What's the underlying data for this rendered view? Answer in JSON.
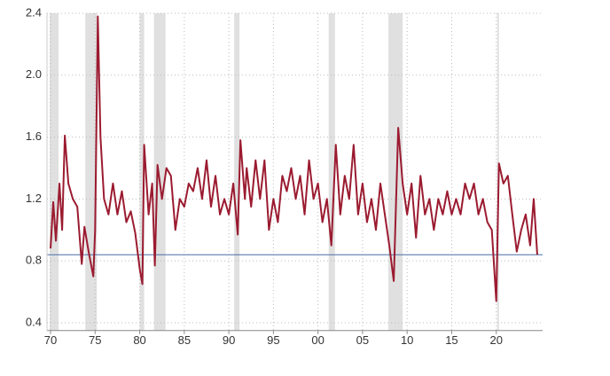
{
  "chart_data": {
    "type": "line",
    "x": [
      1970.0,
      1970.3,
      1970.6,
      1971.0,
      1971.3,
      1971.6,
      1972.0,
      1972.5,
      1973.0,
      1973.5,
      1973.8,
      1974.3,
      1974.8,
      1975.0,
      1975.3,
      1975.6,
      1976.0,
      1976.5,
      1977.0,
      1977.5,
      1978.0,
      1978.5,
      1979.0,
      1979.5,
      1980.0,
      1980.3,
      1980.5,
      1981.0,
      1981.4,
      1981.7,
      1982.0,
      1982.5,
      1983.0,
      1983.5,
      1984.0,
      1984.5,
      1985.0,
      1985.5,
      1986.0,
      1986.5,
      1987.0,
      1987.5,
      1988.0,
      1988.5,
      1989.0,
      1989.5,
      1990.0,
      1990.5,
      1991.0,
      1991.3,
      1991.8,
      1992.0,
      1992.5,
      1993.0,
      1993.5,
      1994.0,
      1994.5,
      1995.0,
      1995.5,
      1996.0,
      1996.5,
      1997.0,
      1997.5,
      1998.0,
      1998.5,
      1999.0,
      1999.5,
      2000.0,
      2000.5,
      2001.0,
      2001.5,
      2002.0,
      2002.5,
      2003.0,
      2003.5,
      2004.0,
      2004.5,
      2005.0,
      2005.5,
      2006.0,
      2006.5,
      2007.0,
      2007.5,
      2008.0,
      2008.5,
      2009.0,
      2009.5,
      2010.0,
      2010.5,
      2011.0,
      2011.5,
      2012.0,
      2012.5,
      2013.0,
      2013.5,
      2014.0,
      2014.5,
      2015.0,
      2015.5,
      2016.0,
      2016.5,
      2017.0,
      2017.5,
      2018.0,
      2018.5,
      2019.0,
      2019.5,
      2020.0,
      2020.3,
      2020.8,
      2021.3,
      2021.8,
      2022.3,
      2022.8,
      2023.3,
      2023.8,
      2024.2,
      2024.6
    ],
    "series": [
      {
        "color": "#9b1b30",
        "values": [
          0.88,
          1.18,
          0.93,
          1.3,
          1.0,
          1.61,
          1.3,
          1.2,
          1.15,
          0.78,
          1.02,
          0.85,
          0.7,
          1.0,
          2.38,
          1.6,
          1.2,
          1.1,
          1.3,
          1.1,
          1.25,
          1.05,
          1.12,
          0.98,
          0.75,
          0.65,
          1.55,
          1.1,
          1.3,
          0.77,
          1.42,
          1.2,
          1.4,
          1.35,
          1.0,
          1.2,
          1.15,
          1.3,
          1.25,
          1.4,
          1.2,
          1.45,
          1.15,
          1.35,
          1.1,
          1.2,
          1.1,
          1.3,
          0.97,
          1.58,
          1.2,
          1.4,
          1.15,
          1.45,
          1.2,
          1.45,
          1.0,
          1.2,
          1.05,
          1.35,
          1.25,
          1.4,
          1.2,
          1.35,
          1.1,
          1.45,
          1.2,
          1.3,
          1.05,
          1.2,
          0.9,
          1.55,
          1.1,
          1.35,
          1.2,
          1.55,
          1.1,
          1.3,
          1.05,
          1.2,
          1.0,
          1.3,
          1.1,
          0.9,
          0.67,
          1.66,
          1.3,
          1.1,
          1.3,
          0.95,
          1.35,
          1.1,
          1.2,
          1.0,
          1.2,
          1.1,
          1.25,
          1.1,
          1.2,
          1.1,
          1.3,
          1.2,
          1.3,
          1.1,
          1.2,
          1.05,
          1.0,
          0.54,
          1.43,
          1.3,
          1.35,
          1.1,
          0.86,
          1.0,
          1.1,
          0.9,
          1.2,
          0.84
        ]
      }
    ],
    "recessions": [
      [
        1969.9,
        1970.9
      ],
      [
        1973.9,
        1975.2
      ],
      [
        1980.0,
        1980.5
      ],
      [
        1981.6,
        1982.9
      ],
      [
        1990.6,
        1991.2
      ],
      [
        2001.2,
        2001.9
      ],
      [
        2007.9,
        2009.5
      ],
      [
        2020.1,
        2020.3
      ]
    ],
    "recession_color": "#e0e0e0",
    "hline": 0.84,
    "hline_color": "#4a6fa5",
    "xlim": [
      1969.6,
      2025.2
    ],
    "ylim": [
      0.35,
      2.4
    ],
    "xticks": [
      {
        "value": 1970,
        "label": "70"
      },
      {
        "value": 1975,
        "label": "75"
      },
      {
        "value": 1980,
        "label": "80"
      },
      {
        "value": 1985,
        "label": "85"
      },
      {
        "value": 1990,
        "label": "90"
      },
      {
        "value": 1995,
        "label": "95"
      },
      {
        "value": 2000,
        "label": "00"
      },
      {
        "value": 2005,
        "label": "05"
      },
      {
        "value": 2010,
        "label": "10"
      },
      {
        "value": 2015,
        "label": "15"
      },
      {
        "value": 2020,
        "label": "20"
      }
    ],
    "yticks": [
      0.4,
      0.8,
      1.2,
      1.6,
      {
        "value": 2.0,
        "label": "2.0"
      },
      2.4
    ],
    "grid": true
  }
}
